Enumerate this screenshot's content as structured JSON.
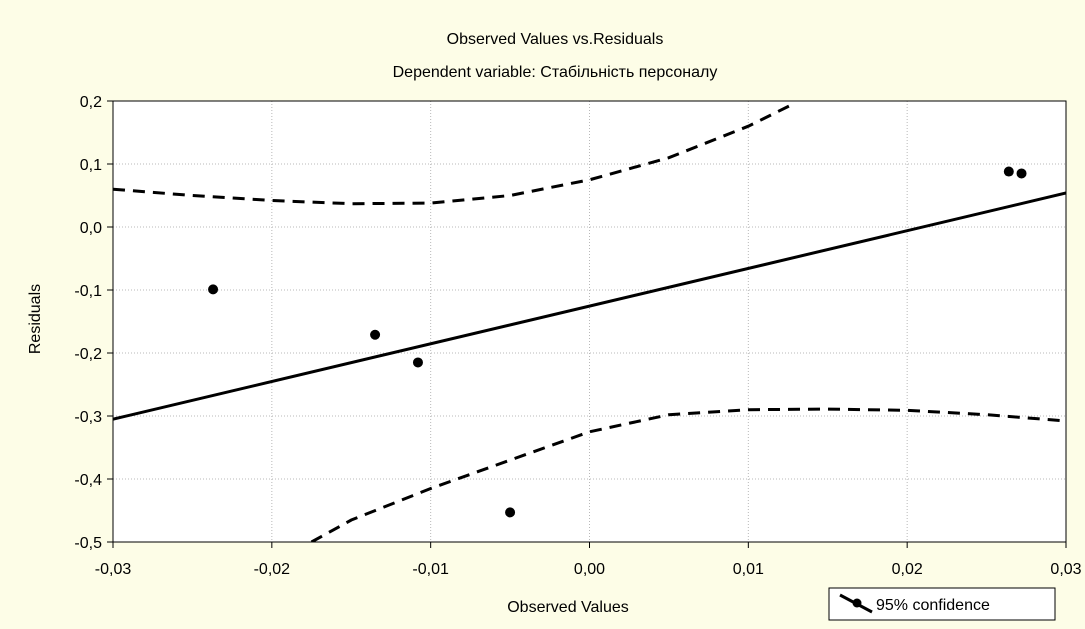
{
  "chart_data": {
    "type": "scatter",
    "title": "Observed Values vs.Residuals",
    "subtitle": "Dependent variable: Стабільність персоналу",
    "xlabel": "Observed Values",
    "ylabel": "Residuals",
    "xlim": [
      -0.03,
      0.03
    ],
    "ylim": [
      -0.5,
      0.2
    ],
    "x_ticks": [
      -0.03,
      -0.02,
      -0.01,
      0.0,
      0.01,
      0.02,
      0.03
    ],
    "x_tick_labels": [
      "-0,03",
      "-0,02",
      "-0,01",
      "0,00",
      "0,01",
      "0,02",
      "0,03"
    ],
    "y_ticks": [
      0.2,
      0.1,
      0.0,
      -0.1,
      -0.2,
      -0.3,
      -0.4,
      -0.5
    ],
    "y_tick_labels": [
      "0,2",
      "0,1",
      "0,0",
      "-0,1",
      "-0,2",
      "-0,3",
      "-0,4",
      "-0,5"
    ],
    "grid": true,
    "points": [
      {
        "x": -0.0237,
        "y": -0.099
      },
      {
        "x": -0.0135,
        "y": -0.171
      },
      {
        "x": -0.0108,
        "y": -0.215
      },
      {
        "x": -0.005,
        "y": -0.453
      },
      {
        "x": 0.0264,
        "y": 0.088
      },
      {
        "x": 0.0272,
        "y": 0.085
      }
    ],
    "regression_line": [
      [
        -0.03,
        -0.305
      ],
      [
        0.03,
        0.054
      ]
    ],
    "upper_confidence": [
      [
        -0.03,
        0.06
      ],
      [
        -0.025,
        0.05
      ],
      [
        -0.02,
        0.042
      ],
      [
        -0.015,
        0.037
      ],
      [
        -0.01,
        0.038
      ],
      [
        -0.005,
        0.05
      ],
      [
        0.0,
        0.075
      ],
      [
        0.005,
        0.11
      ],
      [
        0.01,
        0.16
      ],
      [
        0.0128,
        0.195
      ]
    ],
    "lower_confidence": [
      [
        -0.0175,
        -0.5
      ],
      [
        -0.015,
        -0.465
      ],
      [
        -0.01,
        -0.415
      ],
      [
        -0.005,
        -0.37
      ],
      [
        0.0,
        -0.325
      ],
      [
        0.005,
        -0.298
      ],
      [
        0.01,
        -0.29
      ],
      [
        0.015,
        -0.289
      ],
      [
        0.02,
        -0.291
      ],
      [
        0.025,
        -0.298
      ],
      [
        0.03,
        -0.308
      ]
    ],
    "legend": {
      "label": "95% confidence",
      "position": "bottom-right"
    }
  }
}
